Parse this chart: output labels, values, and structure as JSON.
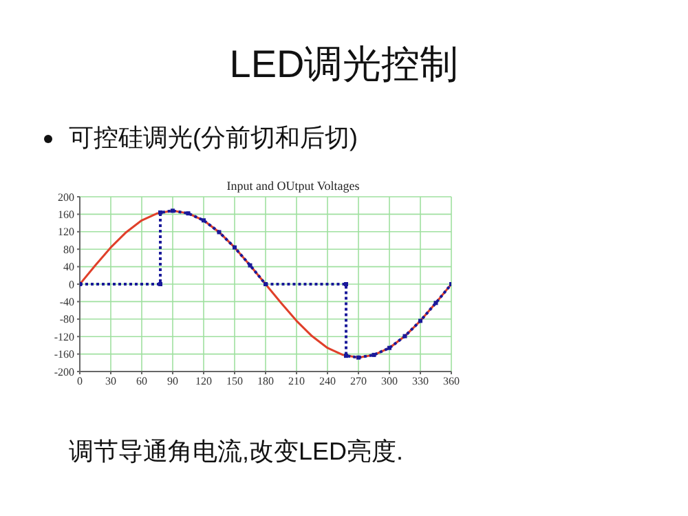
{
  "chart_data": {
    "type": "line",
    "title": "LED调光控制",
    "subtitle": "可控硅调光(分前切和后切)",
    "annotations": [
      "Input and OUtput Voltages",
      "调节导通角电流,改变LED亮度."
    ],
    "xlim": [
      0,
      360
    ],
    "xticks": [
      0,
      30,
      60,
      90,
      120,
      150,
      180,
      210,
      240,
      270,
      300,
      330,
      360
    ],
    "ylim": [
      -200,
      200
    ],
    "yticks": [
      -200,
      -160,
      -120,
      -80,
      -40,
      0,
      40,
      80,
      120,
      160,
      200
    ],
    "grid": true,
    "series": [
      {
        "color": "#e0402a",
        "marker": "none",
        "line_style": "solid",
        "x": [
          0,
          15,
          30,
          45,
          60,
          75,
          90,
          105,
          120,
          135,
          150,
          165,
          180,
          195,
          210,
          225,
          240,
          255,
          270,
          285,
          300,
          315,
          330,
          345,
          360
        ],
        "values": [
          0,
          43,
          84,
          119,
          146,
          162,
          168,
          162,
          146,
          119,
          84,
          43,
          0,
          -43,
          -84,
          -119,
          -146,
          -162,
          -168,
          -162,
          -146,
          -119,
          -84,
          -43,
          0
        ]
      },
      {
        "color": "#1a1a9a",
        "marker": "square",
        "line_style": "dotted",
        "x": [
          0,
          78,
          78,
          90,
          105,
          120,
          135,
          150,
          165,
          180,
          258,
          258,
          270,
          285,
          300,
          315,
          330,
          345,
          360
        ],
        "values": [
          0,
          0,
          164,
          168,
          162,
          146,
          119,
          84,
          43,
          0,
          0,
          -164,
          -168,
          -162,
          -146,
          -119,
          -84,
          -43,
          0
        ]
      }
    ]
  }
}
